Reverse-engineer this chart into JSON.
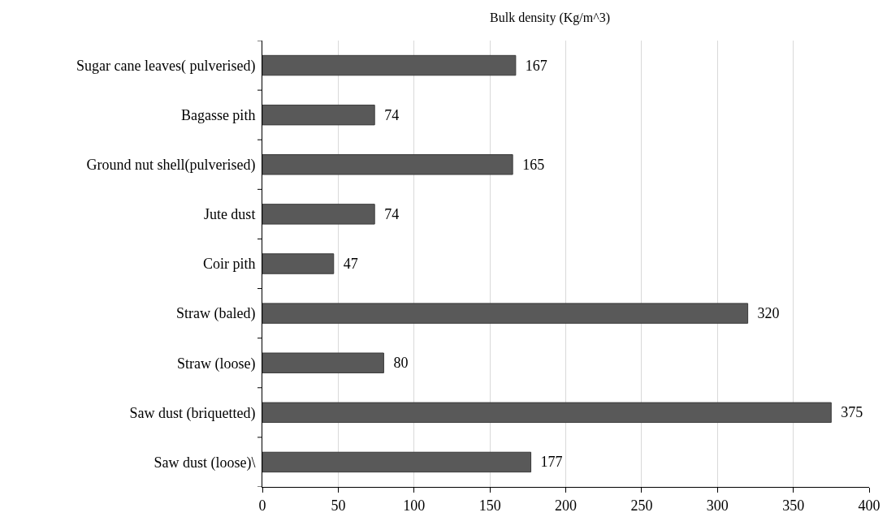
{
  "chart_data": {
    "type": "bar",
    "orientation": "horizontal",
    "title": "Bulk density (Kg/m^3)",
    "categories": [
      "Sugar cane leaves( pulverised)",
      "Bagasse pith",
      "Ground nut shell(pulverised)",
      "Jute dust",
      "Coir pith",
      "Straw (baled)",
      "Straw (loose)",
      "Saw dust (briquetted)",
      "Saw dust (loose)\\"
    ],
    "values": [
      167,
      74,
      165,
      74,
      47,
      320,
      80,
      375,
      177
    ],
    "color": "#595959",
    "xlim": [
      0,
      400
    ],
    "xticks": [
      0,
      50,
      100,
      150,
      200,
      250,
      300,
      350,
      400
    ],
    "grid": "x",
    "data_labels": true
  }
}
